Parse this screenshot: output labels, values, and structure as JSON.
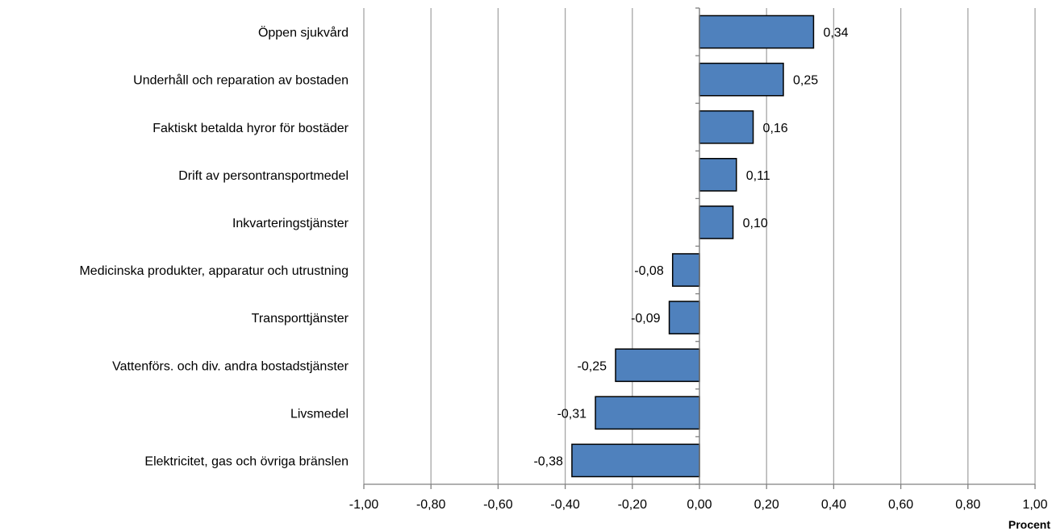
{
  "chart_data": {
    "type": "bar",
    "orientation": "horizontal",
    "categories": [
      "Öppen sjukvård",
      "Underhåll och reparation av bostaden",
      "Faktiskt betalda hyror för bostäder",
      "Drift av persontransportmedel",
      "Inkvarteringstjänster",
      "Medicinska produkter, apparatur och utrustning",
      "Transporttjänster",
      "Vattenförs. och div. andra bostadstjänster",
      "Livsmedel",
      "Elektricitet, gas och övriga bränslen"
    ],
    "values": [
      0.34,
      0.25,
      0.16,
      0.11,
      0.1,
      -0.08,
      -0.09,
      -0.25,
      -0.31,
      -0.38
    ],
    "data_labels": [
      "0,34",
      "0,25",
      "0,16",
      "0,11",
      "0,10",
      "-0,08",
      "-0,09",
      "-0,25",
      "-0,31",
      "-0,38"
    ],
    "xlim": [
      -1.0,
      1.0
    ],
    "x_ticks": [
      -1.0,
      -0.8,
      -0.6,
      -0.4,
      -0.2,
      0.0,
      0.2,
      0.4,
      0.6,
      0.8,
      1.0
    ],
    "x_tick_labels": [
      "-1,00",
      "-0,80",
      "-0,60",
      "-0,40",
      "-0,20",
      "0,00",
      "0,20",
      "0,40",
      "0,60",
      "0,80",
      "1,00"
    ],
    "xlabel": "Procent",
    "title": "",
    "grid": "vertical",
    "colors": {
      "bar_fill": "#4f81bd",
      "bar_stroke": "#000000",
      "grid": "#a6a6a6",
      "axis": "#808080"
    }
  }
}
